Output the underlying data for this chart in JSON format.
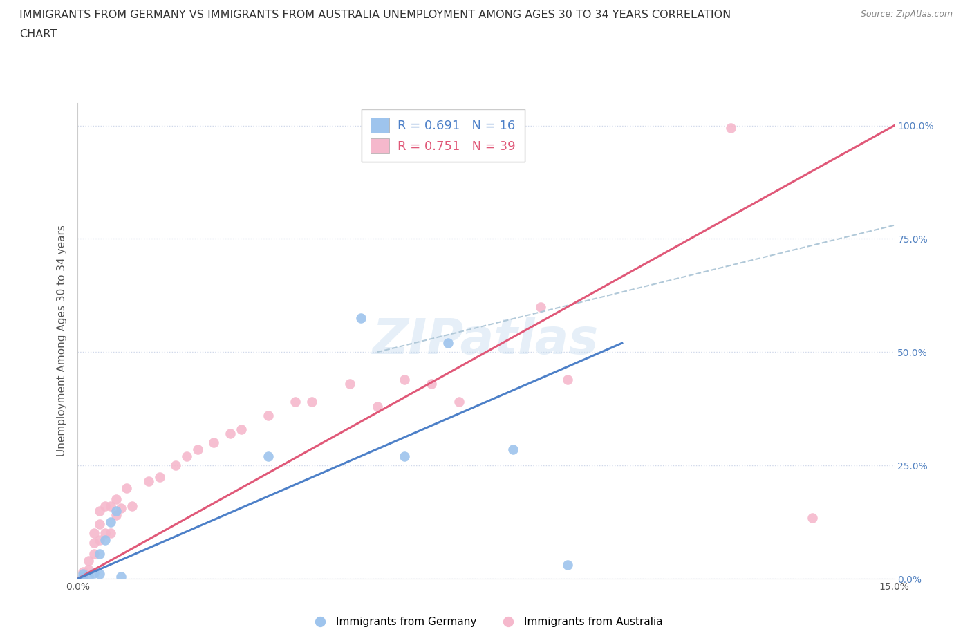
{
  "title_line1": "IMMIGRANTS FROM GERMANY VS IMMIGRANTS FROM AUSTRALIA UNEMPLOYMENT AMONG AGES 30 TO 34 YEARS CORRELATION",
  "title_line2": "CHART",
  "source": "Source: ZipAtlas.com",
  "ylabel": "Unemployment Among Ages 30 to 34 years",
  "xlim": [
    0,
    0.15
  ],
  "ylim": [
    0,
    1.05
  ],
  "ytick_labels": [
    "0.0%",
    "25.0%",
    "50.0%",
    "75.0%",
    "100.0%"
  ],
  "ytick_vals": [
    0,
    0.25,
    0.5,
    0.75,
    1.0
  ],
  "germany_R": "0.691",
  "germany_N": "16",
  "australia_R": "0.751",
  "australia_N": "39",
  "germany_color": "#9ec4ed",
  "australia_color": "#f5b8cc",
  "germany_line_color": "#4d80c8",
  "australia_line_color": "#e05878",
  "diagonal_color": "#b0c8d8",
  "germany_x": [
    0.001,
    0.001,
    0.002,
    0.003,
    0.004,
    0.004,
    0.005,
    0.006,
    0.007,
    0.008,
    0.035,
    0.052,
    0.06,
    0.068,
    0.08,
    0.09
  ],
  "germany_y": [
    0.005,
    0.01,
    0.005,
    0.012,
    0.01,
    0.055,
    0.085,
    0.125,
    0.15,
    0.005,
    0.27,
    0.575,
    0.27,
    0.52,
    0.285,
    0.03
  ],
  "australia_x": [
    0.001,
    0.001,
    0.002,
    0.002,
    0.003,
    0.003,
    0.003,
    0.004,
    0.004,
    0.004,
    0.005,
    0.005,
    0.006,
    0.006,
    0.007,
    0.007,
    0.008,
    0.009,
    0.01,
    0.013,
    0.015,
    0.018,
    0.02,
    0.022,
    0.025,
    0.028,
    0.03,
    0.035,
    0.04,
    0.043,
    0.05,
    0.055,
    0.06,
    0.065,
    0.07,
    0.085,
    0.09,
    0.12,
    0.135
  ],
  "australia_y": [
    0.005,
    0.015,
    0.02,
    0.04,
    0.055,
    0.08,
    0.1,
    0.085,
    0.12,
    0.15,
    0.1,
    0.16,
    0.1,
    0.16,
    0.14,
    0.175,
    0.155,
    0.2,
    0.16,
    0.215,
    0.225,
    0.25,
    0.27,
    0.285,
    0.3,
    0.32,
    0.33,
    0.36,
    0.39,
    0.39,
    0.43,
    0.38,
    0.44,
    0.43,
    0.39,
    0.6,
    0.44,
    0.995,
    0.135
  ],
  "australia_line_x": [
    0.0,
    0.15
  ],
  "australia_line_y": [
    0.0,
    1.0
  ],
  "germany_line_x": [
    0.0,
    0.1
  ],
  "germany_line_y": [
    0.0,
    0.52
  ],
  "diag_line_x": [
    0.055,
    0.15
  ],
  "diag_line_y": [
    0.5,
    0.78
  ],
  "watermark": "ZIPatlas",
  "background_color": "#ffffff",
  "grid_color": "#d0d8ea",
  "right_axis_color": "#5080c0",
  "title_fontsize": 11.5,
  "label_fontsize": 11
}
